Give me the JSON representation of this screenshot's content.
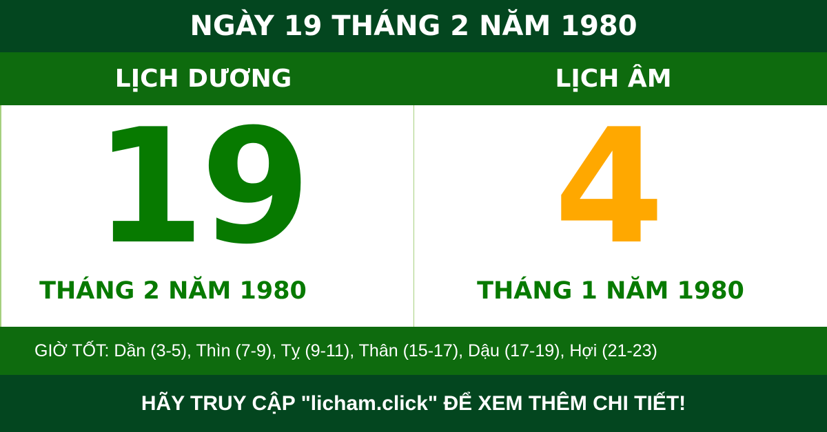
{
  "header": {
    "title": "NGÀY 19 THÁNG 2 NĂM 1980"
  },
  "solar": {
    "label": "LỊCH DƯƠNG",
    "day": "19",
    "month_year": "THÁNG 2 NĂM 1980"
  },
  "lunar": {
    "label": "LỊCH ÂM",
    "day": "4",
    "month_year": "THÁNG 1 NĂM 1980"
  },
  "good_hours": "GIỜ TỐT: Dần (3-5), Thìn (7-9), Tỵ (9-11), Thân (15-17), Dậu (17-19), Hợi (21-23)",
  "footer": "HÃY TRUY CẬP \"licham.click\" ĐỂ XEM THÊM CHI TIẾT!",
  "colors": {
    "dark_green": "#03461f",
    "green": "#0e6b0e",
    "solar_number": "#077a00",
    "lunar_number": "#ffa800"
  }
}
